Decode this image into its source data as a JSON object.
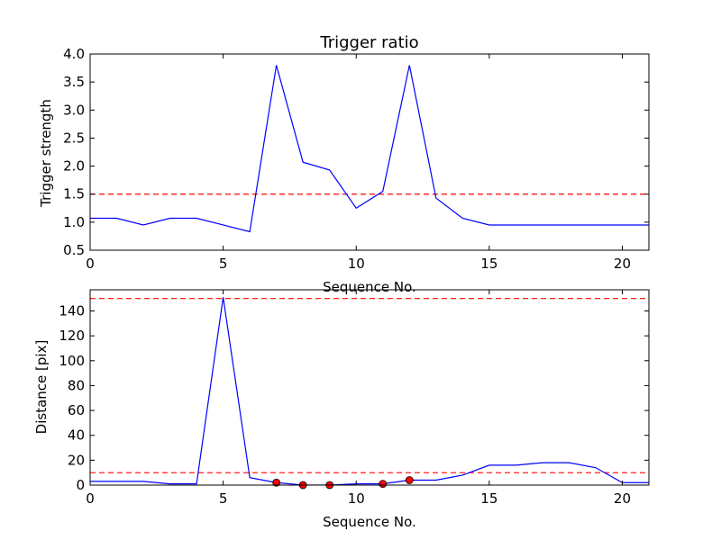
{
  "chart_data": [
    {
      "type": "line",
      "title": "Trigger ratio",
      "xlabel": "Sequence No.",
      "ylabel": "Trigger strength",
      "xlim": [
        0,
        21
      ],
      "ylim": [
        0.5,
        4.0
      ],
      "xticks": [
        0,
        5,
        10,
        15,
        20
      ],
      "xtick_labels": [
        "0",
        "5",
        "10",
        "15",
        "20"
      ],
      "yticks": [
        0.5,
        1.0,
        1.5,
        2.0,
        2.5,
        3.0,
        3.5,
        4.0
      ],
      "ytick_labels": [
        "0.5",
        "1.0",
        "1.5",
        "2.0",
        "2.5",
        "3.0",
        "3.5",
        "4.0"
      ],
      "grid": false,
      "x": [
        0,
        1,
        2,
        3,
        4,
        5,
        6,
        7,
        8,
        9,
        10,
        11,
        12,
        13,
        14,
        15,
        16,
        17,
        18,
        19,
        20,
        21
      ],
      "series": [
        {
          "values": [
            1.07,
            1.07,
            0.95,
            1.07,
            1.07,
            0.95,
            0.83,
            3.8,
            2.07,
            1.93,
            1.25,
            1.55,
            3.8,
            1.43,
            1.07,
            0.95,
            0.95,
            0.95,
            0.95,
            0.95,
            0.95,
            0.95
          ],
          "color": "#0000ff"
        }
      ],
      "hlines": [
        {
          "y": 1.5,
          "color": "#ff0000",
          "style": "dashed"
        }
      ]
    },
    {
      "type": "line",
      "xlabel": "Sequence No.",
      "ylabel": "Distance [pix]",
      "xlim": [
        0,
        21
      ],
      "ylim": [
        0,
        157
      ],
      "xticks": [
        0,
        5,
        10,
        15,
        20
      ],
      "xtick_labels": [
        "0",
        "5",
        "10",
        "15",
        "20"
      ],
      "yticks": [
        0,
        20,
        40,
        60,
        80,
        100,
        120,
        140
      ],
      "ytick_labels": [
        "0",
        "20",
        "40",
        "60",
        "80",
        "100",
        "120",
        "140"
      ],
      "grid": false,
      "x": [
        0,
        1,
        2,
        3,
        4,
        5,
        6,
        7,
        8,
        9,
        10,
        11,
        12,
        13,
        14,
        15,
        16,
        17,
        18,
        19,
        20,
        21
      ],
      "series": [
        {
          "values": [
            3,
            3,
            3,
            1,
            1,
            151,
            6,
            2,
            0,
            0,
            1,
            1,
            4,
            4,
            8,
            16,
            16,
            18,
            18,
            14,
            2,
            2
          ],
          "color": "#0000ff"
        }
      ],
      "markers": {
        "x": [
          7,
          8,
          9,
          11,
          12
        ],
        "y": [
          2,
          0,
          0,
          1,
          4
        ],
        "color": "#ff0000"
      },
      "hlines": [
        {
          "y": 150,
          "color": "#ff0000",
          "style": "dashed"
        },
        {
          "y": 10,
          "color": "#ff0000",
          "style": "dashed"
        }
      ]
    }
  ]
}
